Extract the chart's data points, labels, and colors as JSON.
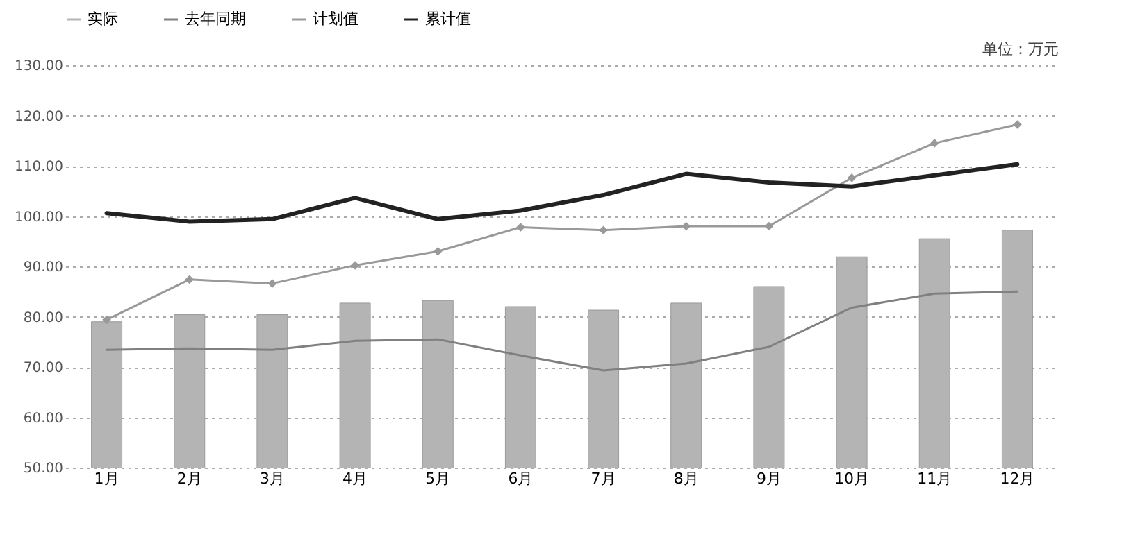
{
  "chart_data": {
    "type": "line",
    "categories": [
      "1月",
      "2月",
      "3月",
      "4月",
      "5月",
      "6月",
      "7月",
      "8月",
      "9月",
      "10月",
      "11月",
      "12月"
    ],
    "series": [
      {
        "name": "实际",
        "type": "bar",
        "color": "#b4b4b4",
        "values": [
          79.0,
          80.4,
          80.4,
          82.7,
          83.2,
          82.0,
          81.3,
          82.7,
          86.0,
          91.9,
          95.5,
          97.2
        ]
      },
      {
        "name": "去年同期",
        "color": "#808080",
        "values": [
          73.4,
          73.7,
          73.4,
          75.2,
          75.5,
          72.3,
          69.3,
          70.7,
          74.0,
          81.8,
          84.6,
          85.0
        ]
      },
      {
        "name": "计划值",
        "color": "#999999",
        "marker": "diamond",
        "values": [
          79.4,
          87.4,
          86.6,
          90.2,
          93.0,
          97.8,
          97.2,
          98.0,
          98.0,
          107.6,
          114.5,
          118.2
        ]
      },
      {
        "name": "累计值",
        "color": "#222222",
        "values": [
          100.6,
          98.9,
          99.4,
          103.6,
          99.4,
          101.1,
          104.2,
          108.4,
          106.7,
          105.9,
          108.1,
          110.3
        ]
      }
    ],
    "ylim": [
      50,
      130
    ],
    "yticks": [
      {
        "value": 50,
        "label": "50.00"
      },
      {
        "value": 60,
        "label": "60.00"
      },
      {
        "value": 70,
        "label": "70.00"
      },
      {
        "value": 80,
        "label": "80.00"
      },
      {
        "value": 90,
        "label": "90.00"
      },
      {
        "value": 100,
        "label": "100.00"
      },
      {
        "value": 110,
        "label": "110.00"
      },
      {
        "value": 120,
        "label": "120.00"
      },
      {
        "value": 130,
        "label": "130.00"
      }
    ],
    "grid": "y",
    "legend": "top",
    "annotations": [
      "单位：万元"
    ]
  }
}
